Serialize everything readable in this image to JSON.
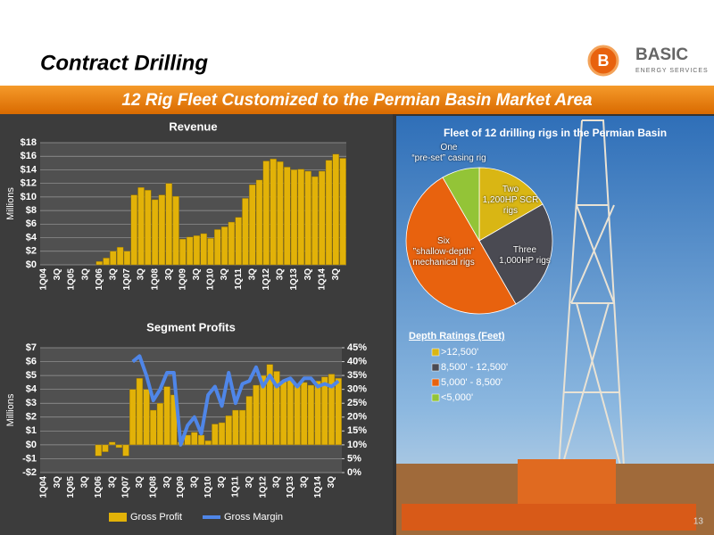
{
  "slide": {
    "title": "Contract Drilling",
    "banner": "12 Rig Fleet Customized to the Permian Basin Market Area",
    "page_number": 13,
    "logo": {
      "letter": "B",
      "name": "BASIC",
      "tagline": "ENERGY SERVICES"
    }
  },
  "chart_data": [
    {
      "type": "bar",
      "title": "Revenue",
      "y_label": "Millions",
      "color": "#e2b208",
      "grid": true,
      "categories": [
        "1Q04",
        null,
        "3Q",
        null,
        "1Q05",
        null,
        "3Q",
        null,
        "1Q06",
        null,
        "3Q",
        null,
        "1Q07",
        null,
        "3Q",
        null,
        "1Q08",
        null,
        "3Q",
        null,
        "1Q09",
        null,
        "3Q",
        null,
        "1Q10",
        null,
        "3Q",
        null,
        "1Q11",
        null,
        "3Q",
        null,
        "1Q12",
        null,
        "3Q",
        null,
        "1Q13",
        null,
        "3Q",
        null,
        "1Q14",
        null,
        "3Q",
        null
      ],
      "values": [
        0,
        0,
        0,
        0,
        0,
        0,
        0,
        0,
        0.5,
        1.0,
        2.0,
        2.6,
        2.0,
        10.3,
        11.4,
        11.0,
        9.6,
        10.3,
        12.0,
        10.1,
        3.8,
        4.1,
        4.3,
        4.6,
        3.9,
        5.2,
        5.6,
        6.3,
        7.0,
        9.8,
        11.8,
        12.5,
        15.3,
        15.6,
        15.2,
        14.4,
        14.0,
        14.1,
        13.8,
        13.0,
        13.8,
        15.4,
        16.3,
        15.7
      ],
      "ylim": [
        0,
        18
      ],
      "yticks": [
        {
          "value": 0,
          "label": "$0"
        },
        {
          "value": 2,
          "label": "$2"
        },
        {
          "value": 4,
          "label": "$4"
        },
        {
          "value": 6,
          "label": "$6"
        },
        {
          "value": 8,
          "label": "$8"
        },
        {
          "value": 10,
          "label": "$10"
        },
        {
          "value": 12,
          "label": "$12"
        },
        {
          "value": 14,
          "label": "$14"
        },
        {
          "value": 16,
          "label": "$16"
        },
        {
          "value": 18,
          "label": "$18"
        }
      ]
    },
    {
      "type": "combo",
      "title": "Segment Profits",
      "y_label": "Millions",
      "grid": true,
      "categories": [
        "1Q04",
        null,
        "3Q",
        null,
        "1Q05",
        null,
        "3Q",
        null,
        "1Q06",
        null,
        "3Q",
        null,
        "1Q07",
        null,
        "3Q",
        null,
        "1Q08",
        null,
        "3Q",
        null,
        "1Q09",
        null,
        "3Q",
        null,
        "1Q10",
        null,
        "3Q",
        null,
        "1Q11",
        null,
        "3Q",
        null,
        "1Q12",
        null,
        "3Q",
        null,
        "1Q13",
        null,
        "3Q",
        null,
        "1Q14",
        null,
        "3Q",
        null
      ],
      "series": [
        {
          "name": "Gross Profit",
          "type": "bar",
          "color": "#e2b208",
          "values": [
            0,
            0,
            0,
            0,
            0,
            0,
            0,
            0,
            -0.8,
            -0.5,
            0.2,
            -0.2,
            -0.8,
            4.0,
            4.8,
            4.0,
            2.5,
            3.0,
            4.2,
            3.6,
            0.2,
            0.7,
            0.9,
            0.7,
            0.3,
            1.5,
            1.6,
            2.1,
            2.5,
            2.5,
            3.5,
            4.3,
            5.0,
            5.8,
            5.3,
            4.6,
            4.7,
            4.4,
            4.5,
            4.3,
            4.6,
            4.9,
            5.1,
            4.8
          ]
        },
        {
          "name": "Gross Margin",
          "type": "line",
          "axis": "y2",
          "color": "#4f86e8",
          "values": [
            null,
            null,
            null,
            null,
            null,
            null,
            null,
            null,
            null,
            null,
            null,
            null,
            null,
            40,
            42,
            35,
            26,
            30,
            36,
            36,
            10,
            17,
            20,
            14,
            28,
            31,
            24,
            36,
            25,
            32,
            33,
            38,
            31,
            35,
            31,
            33,
            34,
            31,
            34,
            34,
            31,
            32,
            31,
            33
          ]
        }
      ],
      "ylim": [
        -2,
        7
      ],
      "yticks": [
        {
          "value": -2,
          "label": "-$2"
        },
        {
          "value": -1,
          "label": "-$1"
        },
        {
          "value": 0,
          "label": "$0"
        },
        {
          "value": 1,
          "label": "$1"
        },
        {
          "value": 2,
          "label": "$2"
        },
        {
          "value": 3,
          "label": "$3"
        },
        {
          "value": 4,
          "label": "$4"
        },
        {
          "value": 5,
          "label": "$5"
        },
        {
          "value": 6,
          "label": "$6"
        },
        {
          "value": 7,
          "label": "$7"
        }
      ],
      "y2lim": [
        0,
        45
      ],
      "y2ticks": [
        {
          "value": 0,
          "label": "0%"
        },
        {
          "value": 5,
          "label": "5%"
        },
        {
          "value": 10,
          "label": "10%"
        },
        {
          "value": 15,
          "label": "15%"
        },
        {
          "value": 20,
          "label": "20%"
        },
        {
          "value": 25,
          "label": "25%"
        },
        {
          "value": 30,
          "label": "30%"
        },
        {
          "value": 35,
          "label": "35%"
        },
        {
          "value": 40,
          "label": "40%"
        },
        {
          "value": 45,
          "label": "45%"
        }
      ]
    },
    {
      "type": "pie",
      "title": "Fleet of 12 drilling rigs in the Permian Basin",
      "categories": [
        "Two\n1,200HP SCR\nrigs",
        "Three\n1,000HP rigs",
        "Six\n”shallow-depth”\nmechanical rigs",
        "One\n“pre-set” casing rig"
      ],
      "values": [
        2,
        3,
        6,
        1
      ],
      "colors": [
        "#d9b614",
        "#4a4a52",
        "#e8620e",
        "#93c437"
      ],
      "legend": {
        "title": "Depth Ratings (Feet)",
        "labels": [
          ">12,500'",
          "8,500' - 12,500'",
          "5,000' - 8,500'",
          "<5,000'"
        ]
      }
    }
  ]
}
